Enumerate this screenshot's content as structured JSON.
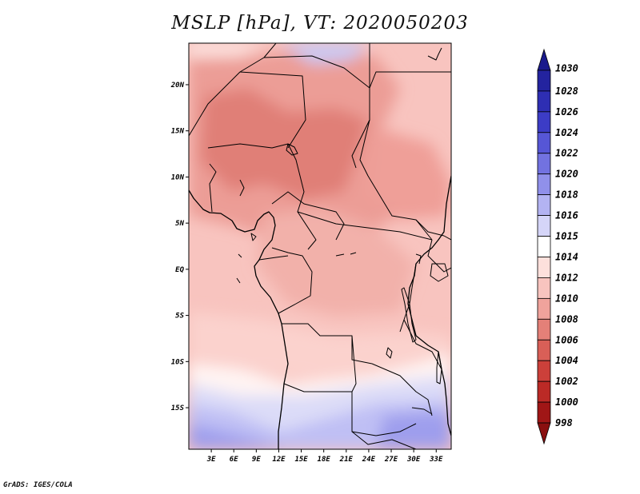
{
  "title": "MSLP [hPa], VT: 2020050203",
  "footer": "GrADS: IGES/COLA",
  "map": {
    "lon_labels": [
      "3E",
      "6E",
      "9E",
      "12E",
      "15E",
      "18E",
      "21E",
      "24E",
      "27E",
      "30E",
      "33E"
    ],
    "lon_values": [
      3,
      6,
      9,
      12,
      15,
      18,
      21,
      24,
      27,
      30,
      33
    ],
    "lat_labels": [
      "20N",
      "15N",
      "10N",
      "5N",
      "EQ",
      "5S",
      "10S",
      "15S"
    ],
    "lat_values": [
      20,
      15,
      10,
      5,
      0,
      -5,
      -10,
      -15
    ],
    "lon_range": [
      0,
      35
    ],
    "lat_range": [
      -19.5,
      24.5
    ]
  },
  "colorbar": {
    "labels": [
      "1030",
      "1028",
      "1026",
      "1024",
      "1022",
      "1020",
      "1018",
      "1016",
      "1015",
      "1014",
      "1012",
      "1010",
      "1008",
      "1006",
      "1004",
      "1002",
      "1000",
      "998"
    ],
    "colors": [
      "#1a1a8c",
      "#23239f",
      "#2e2eb3",
      "#3c3cc6",
      "#5656d6",
      "#7272e0",
      "#9090ea",
      "#b3b3f2",
      "#d5d5f8",
      "#ffffff",
      "#fde0dc",
      "#f8c4bf",
      "#f0a39c",
      "#e48078",
      "#d95f57",
      "#cc403a",
      "#bb2a26",
      "#a01616",
      "#8a0f0f"
    ]
  }
}
